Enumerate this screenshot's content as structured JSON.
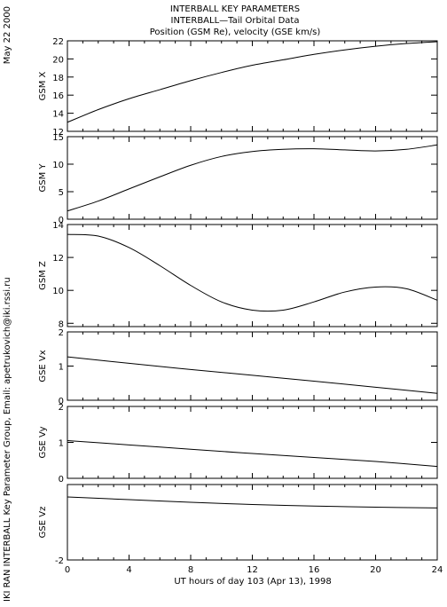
{
  "header": {
    "line1": "INTERBALL KEY PARAMETERS",
    "line2": "INTERBALL—Tail Orbital Data",
    "line3": "Position (GSM Re), velocity (GSE km/s)"
  },
  "side": {
    "date": "May 22 2000",
    "credit": "IKI RAN INTERBALL Key Parameter Group, Email: apetrukovich@iki.rssi.ru"
  },
  "chart_data": {
    "type": "line",
    "xlabel": "UT hours of day 103 (Apr 13), 1998",
    "xlim": [
      0,
      24
    ],
    "xticks": [
      "0",
      "4",
      "8",
      "12",
      "16",
      "20",
      "24"
    ],
    "panels": [
      {
        "ylabel": "GSM X",
        "ylim": [
          12,
          22
        ],
        "yticks": [
          "12",
          "14",
          "16",
          "18",
          "20",
          "22"
        ],
        "x": [
          0,
          2,
          4,
          6,
          8,
          10,
          12,
          14,
          16,
          18,
          20,
          22,
          24
        ],
        "values": [
          13.0,
          14.4,
          15.6,
          16.6,
          17.6,
          18.5,
          19.3,
          19.9,
          20.5,
          21.0,
          21.4,
          21.7,
          21.9
        ]
      },
      {
        "ylabel": "GSM Y",
        "ylim": [
          0,
          15
        ],
        "yticks": [
          "0",
          "5",
          "10",
          "15"
        ],
        "x": [
          0,
          2,
          4,
          6,
          8,
          10,
          12,
          14,
          16,
          18,
          20,
          22,
          24
        ],
        "values": [
          1.5,
          3.3,
          5.5,
          7.7,
          9.8,
          11.4,
          12.3,
          12.7,
          12.8,
          12.6,
          12.4,
          12.7,
          13.5
        ]
      },
      {
        "ylabel": "GSM Z",
        "ylim": [
          7.8,
          14
        ],
        "yticks": [
          "8",
          "10",
          "12",
          "14"
        ],
        "x": [
          0,
          2,
          4,
          6,
          8,
          10,
          12,
          14,
          16,
          18,
          20,
          22,
          24
        ],
        "values": [
          13.4,
          13.3,
          12.6,
          11.5,
          10.3,
          9.3,
          8.8,
          8.8,
          9.3,
          9.9,
          10.2,
          10.1,
          9.4
        ]
      },
      {
        "ylabel": "GSE Vx",
        "ylim": [
          0,
          2
        ],
        "yticks": [
          "0",
          "1",
          "2"
        ],
        "x": [
          0,
          4,
          8,
          12,
          16,
          20,
          24
        ],
        "values": [
          1.27,
          1.08,
          0.9,
          0.73,
          0.56,
          0.38,
          0.2
        ]
      },
      {
        "ylabel": "GSE Vy",
        "ylim": [
          0,
          2
        ],
        "yticks": [
          "0",
          "1",
          "2"
        ],
        "x": [
          0,
          4,
          8,
          12,
          16,
          20,
          24
        ],
        "values": [
          1.05,
          0.93,
          0.81,
          0.69,
          0.58,
          0.47,
          0.33
        ]
      },
      {
        "ylabel": "GSE Vz",
        "ylim": [
          -2,
          0
        ],
        "yticks": [
          "-2"
        ],
        "x": [
          0,
          4,
          8,
          12,
          16,
          20,
          24
        ],
        "values": [
          -0.33,
          -0.4,
          -0.47,
          -0.53,
          -0.57,
          -0.6,
          -0.62
        ]
      }
    ]
  }
}
